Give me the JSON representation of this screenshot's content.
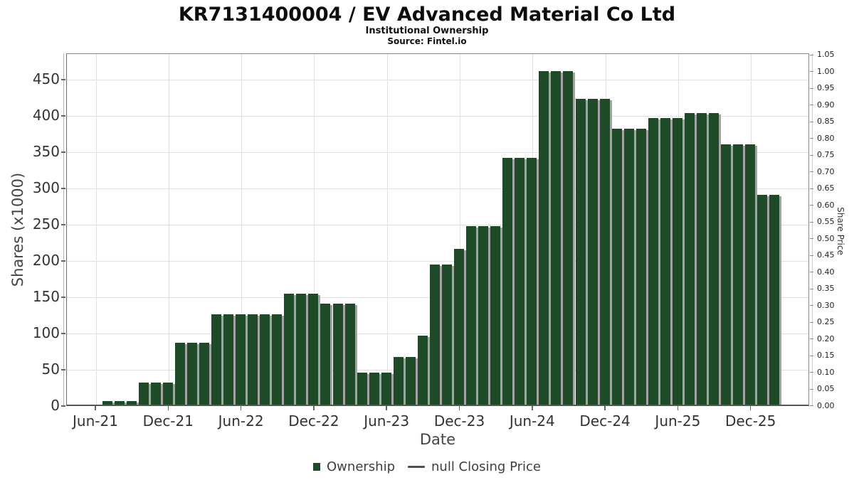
{
  "header": {
    "title": "KR7131400004 / EV Advanced Material Co Ltd",
    "subtitle": "Institutional Ownership",
    "source": "Source: Fintel.io"
  },
  "chart_data": {
    "type": "bar",
    "title": "KR7131400004 / EV Advanced Material Co Ltd",
    "subtitle": "Institutional Ownership",
    "source": "Source: Fintel.io",
    "xlabel": "Date",
    "ylabel_left": "Shares (x1000)",
    "ylabel_right": "Share Price",
    "x": [
      "Jul-21",
      "Aug-21",
      "Sep-21",
      "Oct-21",
      "Nov-21",
      "Dec-21",
      "Jan-22",
      "Feb-22",
      "Mar-22",
      "Apr-22",
      "May-22",
      "Jun-22",
      "Jul-22",
      "Aug-22",
      "Sep-22",
      "Oct-22",
      "Nov-22",
      "Dec-22",
      "Jan-23",
      "Feb-23",
      "Mar-23",
      "Apr-23",
      "May-23",
      "Jun-23",
      "Jul-23",
      "Aug-23",
      "Sep-23",
      "Oct-23",
      "Nov-23",
      "Dec-23",
      "Jan-24",
      "Feb-24",
      "Mar-24",
      "Apr-24",
      "May-24",
      "Jun-24",
      "Jul-24",
      "Aug-24",
      "Sep-24",
      "Oct-24",
      "Nov-24",
      "Dec-24",
      "Jan-25",
      "Feb-25",
      "Mar-25",
      "Apr-25",
      "May-25",
      "Jun-25",
      "Jul-25",
      "Aug-25",
      "Sep-25",
      "Oct-25",
      "Nov-25",
      "Dec-25",
      "Jan-26",
      "Feb-26"
    ],
    "series": [
      {
        "name": "Ownership",
        "units": "shares x1000",
        "values": [
          5,
          5,
          5,
          30,
          30,
          30,
          85,
          85,
          85,
          125,
          125,
          125,
          125,
          125,
          125,
          153,
          153,
          153,
          139,
          139,
          139,
          44,
          44,
          44,
          66,
          66,
          95,
          193,
          193,
          215,
          246,
          246,
          246,
          340,
          340,
          340,
          460,
          460,
          460,
          422,
          422,
          422,
          380,
          380,
          380,
          395,
          395,
          395,
          402,
          402,
          402,
          359,
          359,
          359,
          289,
          289
        ]
      },
      {
        "name": "null Closing Price",
        "units": "share price",
        "values": []
      }
    ],
    "x_ticks": {
      "labels": [
        "Jun-21",
        "Dec-21",
        "Jun-22",
        "Dec-22",
        "Jun-23",
        "Dec-23",
        "Jun-24",
        "Dec-24",
        "Jun-25",
        "Dec-25"
      ],
      "month_offsets": [
        0,
        6,
        12,
        18,
        24,
        30,
        36,
        42,
        48,
        54
      ]
    },
    "y_left_ticks": [
      0,
      50,
      100,
      150,
      200,
      250,
      300,
      350,
      400,
      450
    ],
    "y_right_ticks": [
      "0.00",
      "0.05",
      "0.10",
      "0.15",
      "0.20",
      "0.25",
      "0.30",
      "0.35",
      "0.40",
      "0.45",
      "0.50",
      "0.55",
      "0.60",
      "0.65",
      "0.70",
      "0.75",
      "0.80",
      "0.85",
      "0.90",
      "0.95",
      "1.00",
      "1.05"
    ],
    "ylim_left": [
      0,
      486
    ],
    "ylim_right": [
      0,
      1.05
    ],
    "grid": true,
    "legend": {
      "position": "bottom",
      "items": [
        {
          "label": "Ownership",
          "marker": "square",
          "color": "#1f4a28"
        },
        {
          "label": "null Closing Price",
          "marker": "line",
          "color": "#4f4f4f"
        }
      ]
    }
  },
  "colors": {
    "bar": "#1f4a28",
    "bar_shadow": "#a3a3a3",
    "grid": "#e0e0e0",
    "axis": "#6e6e6e",
    "tick_text": "#333333"
  }
}
